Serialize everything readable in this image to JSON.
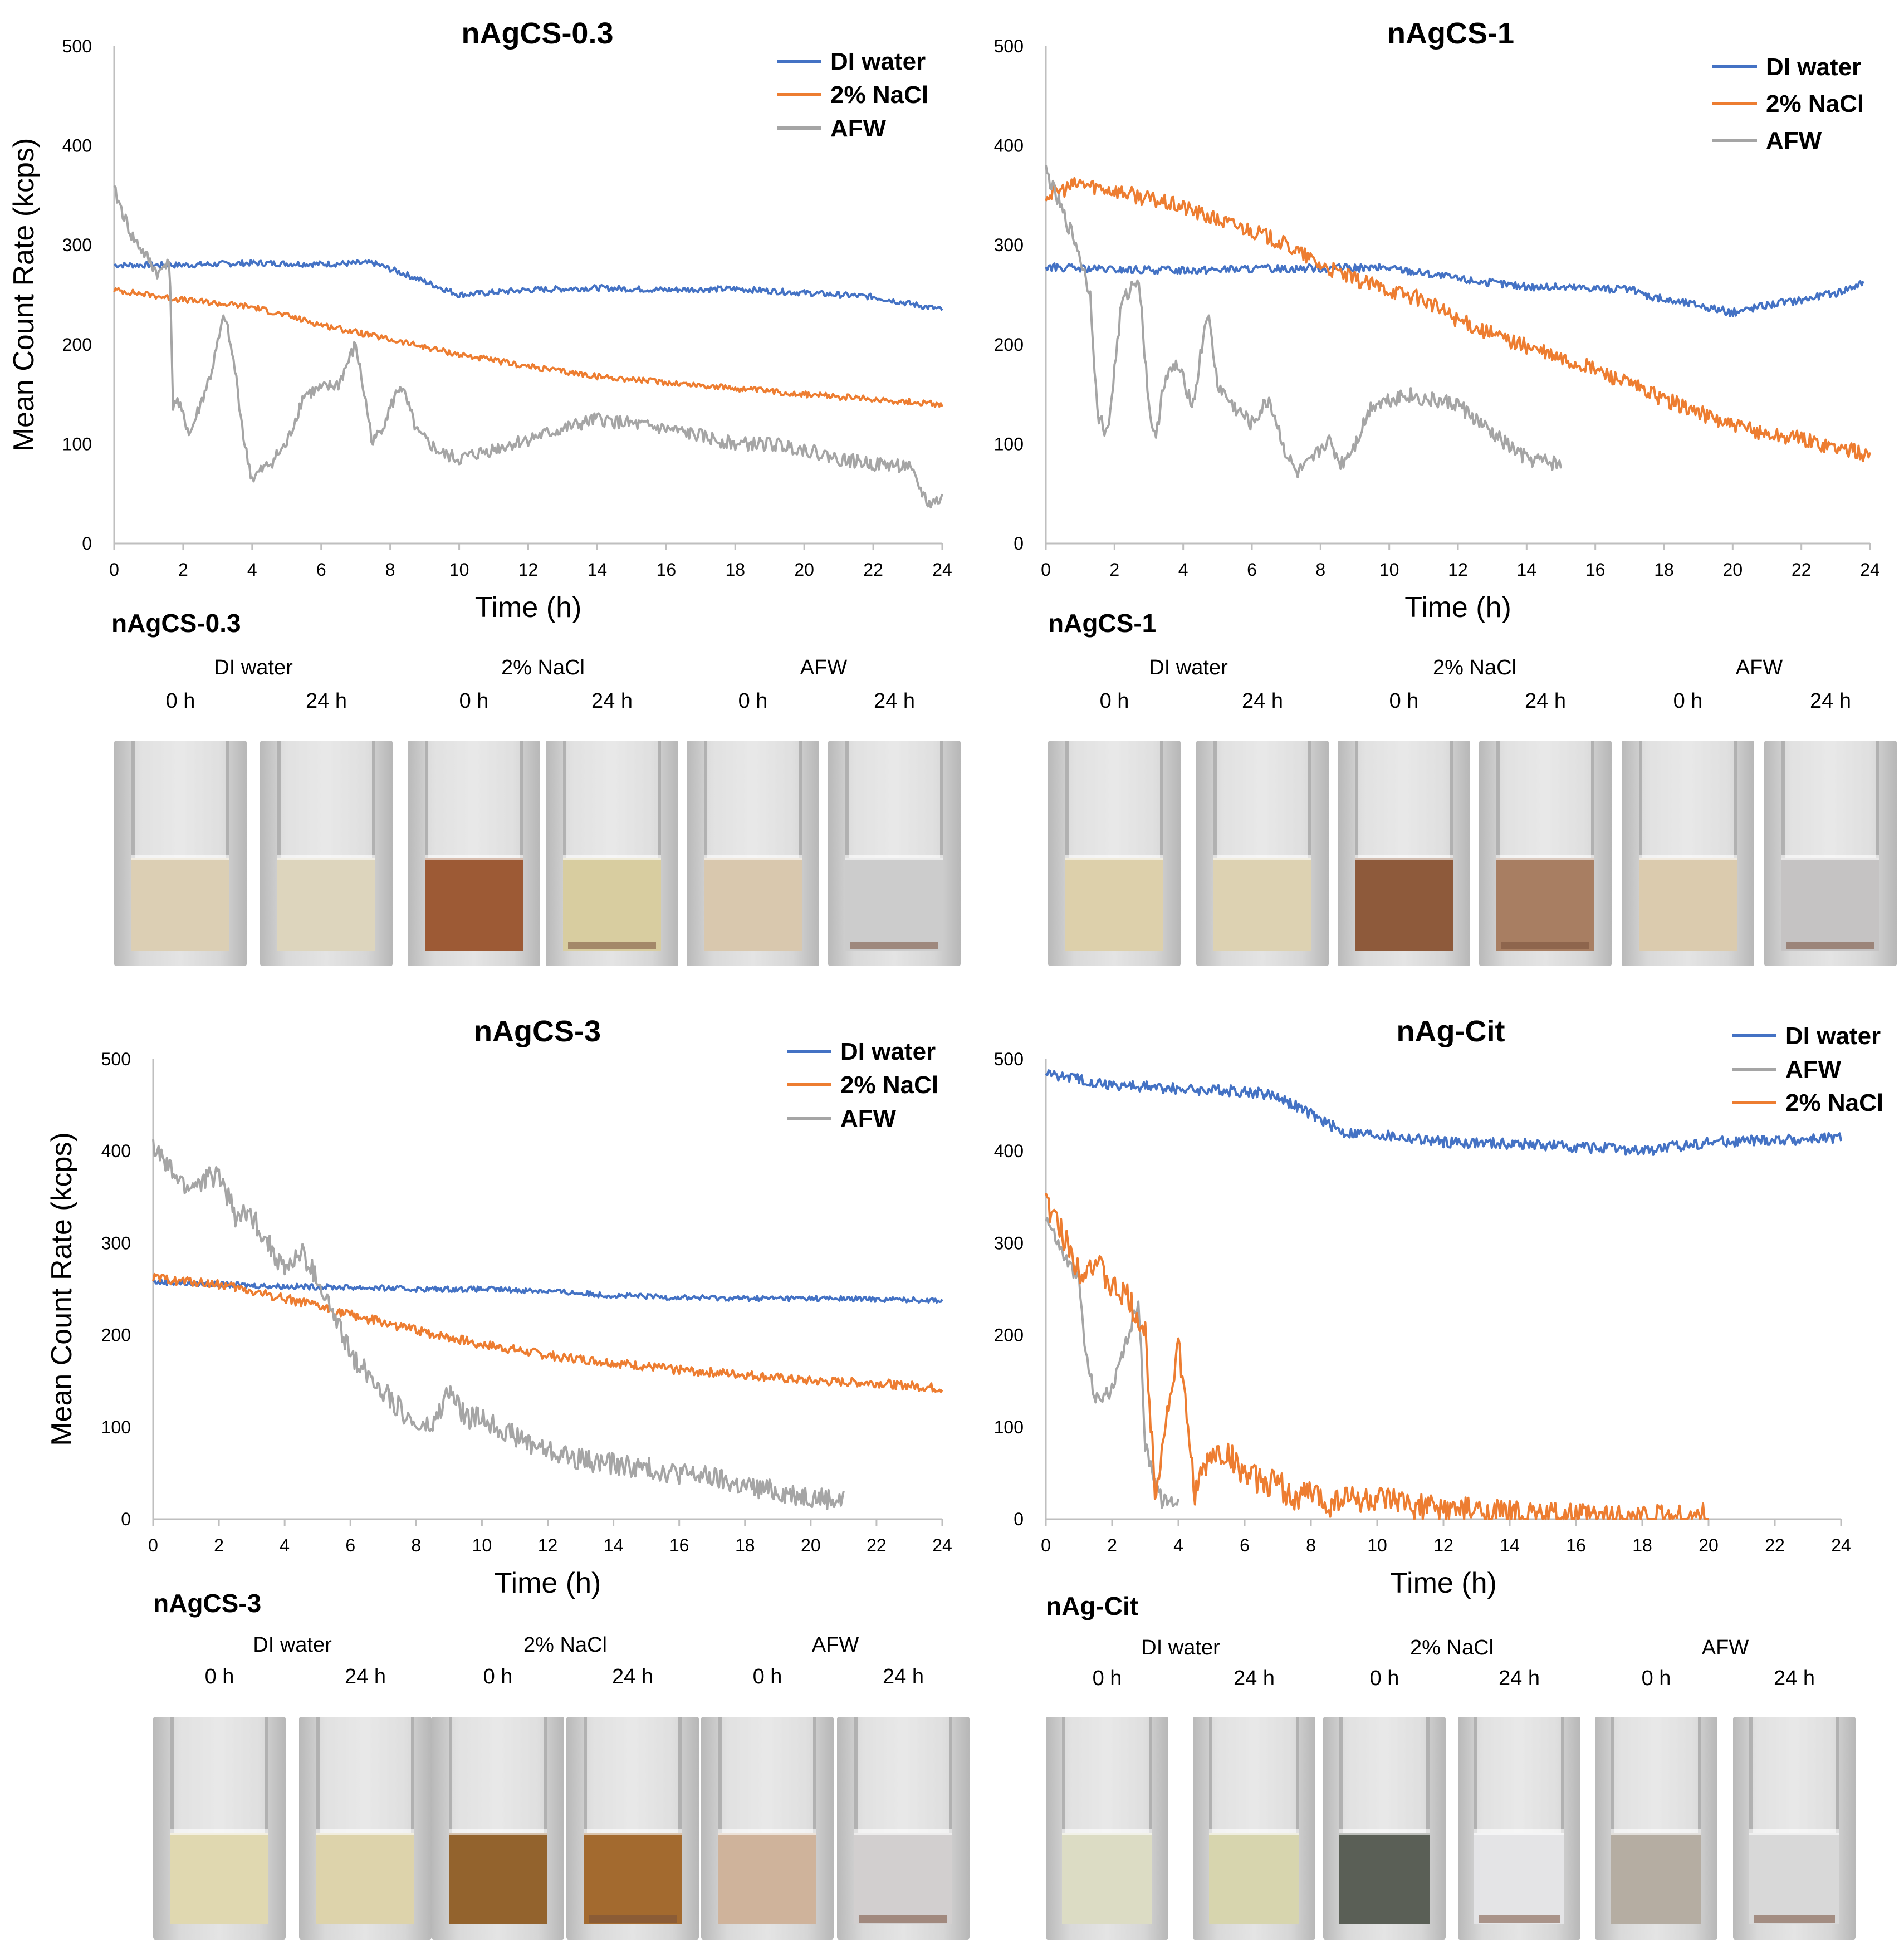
{
  "chart_data": [
    {
      "type": "line",
      "title": "nAgCS-0.3",
      "xlabel": "Time (h)",
      "ylabel": "Mean Count Rate (kcps)",
      "xlim": [
        0,
        24
      ],
      "ylim": [
        0,
        500
      ],
      "xticks": [
        "0",
        "2",
        "4",
        "6",
        "8",
        "10",
        "12",
        "14",
        "16",
        "18",
        "20",
        "22",
        "24"
      ],
      "yticks": [
        "0",
        "100",
        "200",
        "300",
        "400",
        "500"
      ],
      "legend": "top-right",
      "series": [
        {
          "name": "DI water",
          "color": "#4472C4",
          "noise": 3,
          "x": [
            0,
            2,
            4,
            6,
            7.5,
            8.5,
            10,
            12,
            14,
            16,
            18,
            20,
            22,
            24
          ],
          "y": [
            280,
            280,
            282,
            281,
            282,
            270,
            250,
            255,
            257,
            255,
            256,
            252,
            248,
            235
          ]
        },
        {
          "name": "2% NaCl",
          "color": "#ED7D31",
          "noise": 3,
          "x": [
            0,
            2,
            4,
            6,
            8,
            10,
            12,
            14,
            16,
            18,
            20,
            22,
            24
          ],
          "y": [
            255,
            245,
            238,
            220,
            205,
            190,
            178,
            168,
            162,
            156,
            150,
            145,
            140
          ]
        },
        {
          "name": "AFW",
          "color": "#A5A5A5",
          "noise": 7,
          "x": [
            0,
            0.5,
            1.3,
            1.6,
            1.7,
            1.8,
            2.2,
            2.8,
            3.2,
            3.5,
            3.8,
            4.0,
            4.5,
            5.0,
            5.5,
            6.0,
            6.5,
            7.0,
            7.5,
            7.8,
            8.3,
            8.8,
            9.5,
            10,
            11,
            12,
            13,
            14,
            15,
            16,
            17,
            18,
            19,
            20,
            21,
            22,
            23,
            23.6,
            24
          ],
          "y": [
            355,
            310,
            270,
            290,
            140,
            145,
            110,
            170,
            230,
            175,
            95,
            65,
            80,
            100,
            150,
            155,
            160,
            200,
            100,
            120,
            160,
            110,
            90,
            85,
            95,
            105,
            115,
            125,
            120,
            115,
            108,
            100,
            100,
            95,
            85,
            80,
            78,
            40,
            45
          ]
        }
      ]
    },
    {
      "type": "line",
      "title": "nAgCS-1",
      "xlabel": "Time (h)",
      "ylabel": "",
      "xlim": [
        0,
        24
      ],
      "ylim": [
        0,
        500
      ],
      "xticks": [
        "0",
        "2",
        "4",
        "6",
        "8",
        "10",
        "12",
        "14",
        "16",
        "18",
        "20",
        "22",
        "24"
      ],
      "yticks": [
        "0",
        "100",
        "200",
        "300",
        "400",
        "500"
      ],
      "legend": "top-right",
      "series": [
        {
          "name": "DI water",
          "color": "#4472C4",
          "noise": 4,
          "x": [
            0,
            2,
            4,
            6,
            8,
            10,
            11,
            12,
            13,
            14,
            16,
            17,
            18,
            19,
            20,
            21,
            22,
            23,
            23.8
          ],
          "y": [
            278,
            275,
            275,
            276,
            277,
            277,
            272,
            266,
            262,
            258,
            257,
            255,
            245,
            240,
            232,
            240,
            245,
            252,
            262
          ]
        },
        {
          "name": "2% NaCl",
          "color": "#ED7D31",
          "noise": 8,
          "x": [
            0,
            1,
            2,
            4,
            5,
            6,
            7,
            8,
            9,
            10,
            11,
            12,
            13,
            14,
            15,
            16,
            17,
            18,
            19,
            20,
            21,
            22,
            23,
            24
          ],
          "y": [
            350,
            362,
            355,
            338,
            325,
            315,
            300,
            280,
            265,
            255,
            245,
            225,
            210,
            198,
            185,
            175,
            160,
            145,
            132,
            118,
            110,
            105,
            97,
            88
          ]
        },
        {
          "name": "AFW",
          "color": "#A5A5A5",
          "noise": 8,
          "x": [
            0,
            0.4,
            0.9,
            1.3,
            1.5,
            1.8,
            2.2,
            2.7,
            3.0,
            3.2,
            3.4,
            3.8,
            4.3,
            4.7,
            5.0,
            5.4,
            6.0,
            6.5,
            7.0,
            7.3,
            7.7,
            8.2,
            8.6,
            9.0,
            9.5,
            10,
            10.5,
            11,
            12,
            13,
            14,
            15
          ],
          "y": [
            375,
            340,
            300,
            250,
            130,
            110,
            240,
            270,
            140,
            100,
            160,
            180,
            140,
            235,
            160,
            140,
            120,
            145,
            90,
            70,
            80,
            105,
            80,
            100,
            140,
            145,
            150,
            145,
            140,
            110,
            85,
            80
          ]
        }
      ]
    },
    {
      "type": "line",
      "title": "nAgCS-3",
      "xlabel": "Time (h)",
      "ylabel": "Mean Count Rate (kcps)",
      "xlim": [
        0,
        24
      ],
      "ylim": [
        0,
        500
      ],
      "xticks": [
        "0",
        "2",
        "4",
        "6",
        "8",
        "10",
        "12",
        "14",
        "16",
        "18",
        "20",
        "22",
        "24"
      ],
      "yticks": [
        "0",
        "100",
        "200",
        "300",
        "400",
        "500"
      ],
      "legend": "top-right",
      "series": [
        {
          "name": "DI water",
          "color": "#4472C4",
          "noise": 3,
          "x": [
            0,
            2,
            4,
            6,
            8,
            10,
            12,
            14,
            16,
            18,
            20,
            22,
            24
          ],
          "y": [
            258,
            255,
            253,
            252,
            250,
            250,
            248,
            243,
            241,
            240,
            240,
            239,
            238
          ]
        },
        {
          "name": "2% NaCl",
          "color": "#ED7D31",
          "noise": 5,
          "x": [
            0,
            2,
            4,
            6,
            8,
            10,
            12,
            14,
            16,
            18,
            20,
            22,
            24
          ],
          "y": [
            262,
            255,
            240,
            222,
            205,
            190,
            178,
            170,
            162,
            157,
            150,
            148,
            142
          ]
        },
        {
          "name": "AFW",
          "color": "#A5A5A5",
          "noise": 12,
          "x": [
            0,
            0.5,
            1,
            2,
            2.5,
            3,
            4,
            4.5,
            5,
            5.5,
            6,
            6.5,
            7,
            7.5,
            8,
            8.5,
            9,
            9.5,
            10,
            11,
            12,
            13,
            14,
            15,
            16,
            17,
            18,
            19,
            20,
            21
          ],
          "y": [
            405,
            380,
            360,
            375,
            330,
            330,
            270,
            290,
            260,
            220,
            180,
            160,
            140,
            120,
            100,
            100,
            140,
            110,
            110,
            90,
            75,
            65,
            60,
            55,
            50,
            45,
            35,
            30,
            25,
            20
          ]
        }
      ]
    },
    {
      "type": "line",
      "title": "nAg-Cit",
      "xlabel": "Time (h)",
      "ylabel": "",
      "xlim": [
        0,
        24
      ],
      "ylim": [
        0,
        500
      ],
      "xticks": [
        "0",
        "2",
        "4",
        "6",
        "8",
        "10",
        "12",
        "14",
        "16",
        "18",
        "20",
        "22",
        "24"
      ],
      "yticks": [
        "0",
        "100",
        "200",
        "300",
        "400",
        "500"
      ],
      "legend": "top-right",
      "series": [
        {
          "name": "DI water",
          "color": "#4472C4",
          "noise": 6,
          "x": [
            0,
            2,
            4,
            6,
            7,
            8,
            9,
            10,
            12,
            14,
            16,
            18,
            20,
            22,
            24
          ],
          "y": [
            485,
            472,
            468,
            465,
            460,
            440,
            420,
            418,
            410,
            408,
            405,
            400,
            410,
            412,
            414
          ]
        },
        {
          "name": "AFW",
          "color": "#A5A5A5",
          "noise": 8,
          "x": [
            0,
            0.5,
            1,
            1.2,
            1.5,
            2,
            2.5,
            2.8,
            3.0,
            3.5,
            4.0
          ],
          "y": [
            330,
            290,
            260,
            180,
            130,
            140,
            200,
            240,
            80,
            20,
            20
          ]
        },
        {
          "name": "2% NaCl",
          "color": "#ED7D31",
          "noise": 15,
          "x": [
            0,
            0.5,
            1,
            1.5,
            2,
            2.5,
            3,
            3.3,
            3.6,
            4.0,
            4.5,
            5,
            5.5,
            6,
            6.5,
            7,
            7.5,
            8,
            8.5,
            9,
            9.5,
            10,
            11,
            12,
            13,
            14,
            15,
            16,
            17,
            18,
            19,
            20
          ],
          "y": [
            345,
            310,
            270,
            280,
            250,
            240,
            200,
            30,
            100,
            190,
            30,
            70,
            70,
            50,
            40,
            40,
            20,
            30,
            15,
            25,
            20,
            20,
            15,
            10,
            8,
            5,
            3,
            3,
            2,
            2,
            2,
            2
          ]
        }
      ]
    }
  ],
  "photo_sets": [
    {
      "title": "nAgCS-0.3",
      "conditions": [
        {
          "label": "DI water",
          "times": [
            "0 h",
            "24 h"
          ],
          "colors": [
            "#dccfb4",
            "#ddd5bd"
          ]
        },
        {
          "label": "2% NaCl",
          "times": [
            "0 h",
            "24 h"
          ],
          "colors": [
            "#9d5a35",
            "#d8cda0"
          ]
        },
        {
          "label": "AFW",
          "times": [
            "0 h",
            "24 h"
          ],
          "colors": [
            "#d9c8ae",
            "#cccccc"
          ]
        }
      ]
    },
    {
      "title": "nAgCS-1",
      "conditions": [
        {
          "label": "DI water",
          "times": [
            "0 h",
            "24 h"
          ],
          "colors": [
            "#ddd0ab",
            "#ddd2b2"
          ]
        },
        {
          "label": "2% NaCl",
          "times": [
            "0 h",
            "24 h"
          ],
          "colors": [
            "#8e5a3b",
            "#a87e62"
          ]
        },
        {
          "label": "AFW",
          "times": [
            "0 h",
            "24 h"
          ],
          "colors": [
            "#dbcbae",
            "#c5c3c3"
          ]
        }
      ]
    },
    {
      "title": "nAgCS-3",
      "conditions": [
        {
          "label": "DI water",
          "times": [
            "0 h",
            "24 h"
          ],
          "colors": [
            "#e0d8b0",
            "#ddd3ab"
          ]
        },
        {
          "label": "2% NaCl",
          "times": [
            "0 h",
            "24 h"
          ],
          "colors": [
            "#93632d",
            "#a36a2f"
          ]
        },
        {
          "label": "AFW",
          "times": [
            "0 h",
            "24 h"
          ],
          "colors": [
            "#cfb39b",
            "#d2cfcf"
          ]
        }
      ]
    },
    {
      "title": "nAg-Cit",
      "conditions": [
        {
          "label": "DI water",
          "times": [
            "0 h",
            "24 h"
          ],
          "colors": [
            "#dcdcc4",
            "#d7d5ae"
          ]
        },
        {
          "label": "2% NaCl",
          "times": [
            "0 h",
            "24 h"
          ],
          "colors": [
            "#5a5f56",
            "#e4e4e6"
          ]
        },
        {
          "label": "AFW",
          "times": [
            "0 h",
            "24 h"
          ],
          "colors": [
            "#b5ada2",
            "#d8d8d8"
          ]
        }
      ]
    }
  ]
}
